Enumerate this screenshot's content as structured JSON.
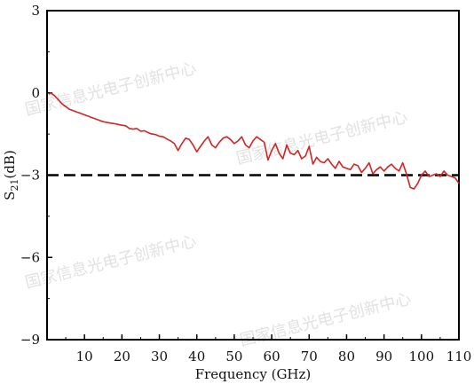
{
  "chart_data": {
    "type": "line",
    "xlabel": "Frequency (GHz)",
    "ylabel": "S21 (dB)",
    "ylabel_main": "S",
    "ylabel_sub": "21",
    "ylabel_unit": "(dB)",
    "xlim": [
      0,
      110
    ],
    "ylim": [
      -9,
      3
    ],
    "xticks": [
      10,
      20,
      30,
      40,
      50,
      60,
      70,
      80,
      90,
      100,
      110
    ],
    "yticks": [
      3,
      0,
      -3,
      -6,
      -9
    ],
    "ytick_labels": [
      "3",
      "0",
      "−3",
      "−6",
      "−9"
    ],
    "grid": false,
    "reference_line": {
      "y": -3,
      "style": "dashed",
      "color": "#000000"
    },
    "series": [
      {
        "color": "#d42424",
        "x": [
          0.5,
          1,
          1.5,
          2,
          3,
          4,
          5,
          6,
          7,
          8,
          9,
          10,
          11,
          12,
          13,
          14,
          15,
          16,
          17,
          18,
          19,
          20,
          21,
          22,
          23,
          24,
          25,
          26,
          27,
          28,
          29,
          30,
          31,
          32,
          33,
          34,
          35,
          36,
          37,
          38,
          39,
          40,
          41,
          42,
          43,
          44,
          45,
          46,
          47,
          48,
          49,
          50,
          51,
          52,
          53,
          54,
          55,
          56,
          57,
          58,
          59,
          60,
          61,
          62,
          63,
          64,
          65,
          66,
          67,
          68,
          69,
          70,
          71,
          72,
          73,
          74,
          75,
          76,
          77,
          78,
          79,
          80,
          81,
          82,
          83,
          84,
          85,
          86,
          87,
          88,
          89,
          90,
          91,
          92,
          93,
          94,
          95,
          96,
          97,
          98,
          99,
          100,
          101,
          102,
          103,
          104,
          105,
          106,
          107,
          108,
          109,
          110
        ],
        "y": [
          -0.05,
          0.0,
          -0.05,
          -0.1,
          -0.25,
          -0.4,
          -0.5,
          -0.6,
          -0.65,
          -0.7,
          -0.75,
          -0.8,
          -0.85,
          -0.9,
          -0.95,
          -1.0,
          -1.05,
          -1.08,
          -1.1,
          -1.12,
          -1.15,
          -1.18,
          -1.2,
          -1.3,
          -1.32,
          -1.3,
          -1.4,
          -1.38,
          -1.45,
          -1.5,
          -1.52,
          -1.58,
          -1.6,
          -1.68,
          -1.75,
          -1.85,
          -2.1,
          -1.85,
          -1.65,
          -1.7,
          -1.9,
          -2.15,
          -1.95,
          -1.75,
          -1.6,
          -1.9,
          -2.0,
          -1.8,
          -1.65,
          -1.6,
          -1.7,
          -1.85,
          -1.75,
          -1.6,
          -1.9,
          -2.0,
          -1.75,
          -1.6,
          -1.7,
          -1.8,
          -2.45,
          -2.1,
          -1.85,
          -2.2,
          -2.4,
          -1.9,
          -2.2,
          -2.25,
          -2.1,
          -2.4,
          -2.3,
          -1.95,
          -2.6,
          -2.35,
          -2.5,
          -2.55,
          -2.4,
          -2.6,
          -2.75,
          -2.5,
          -2.7,
          -2.75,
          -2.8,
          -2.6,
          -2.65,
          -2.9,
          -2.75,
          -2.55,
          -2.95,
          -2.8,
          -2.7,
          -2.85,
          -2.7,
          -2.6,
          -2.75,
          -2.85,
          -2.55,
          -2.95,
          -3.45,
          -3.5,
          -3.3,
          -3.0,
          -2.85,
          -3.05,
          -3.0,
          -2.95,
          -3.05,
          -2.85,
          -3.0,
          -3.05,
          -3.1,
          -3.3
        ]
      }
    ]
  },
  "watermarks": [
    "国家信息光电子创新中心",
    "国家信息光电子创新中心",
    "国家信息光电子创新中心",
    "国家信息光电子创新中心"
  ]
}
